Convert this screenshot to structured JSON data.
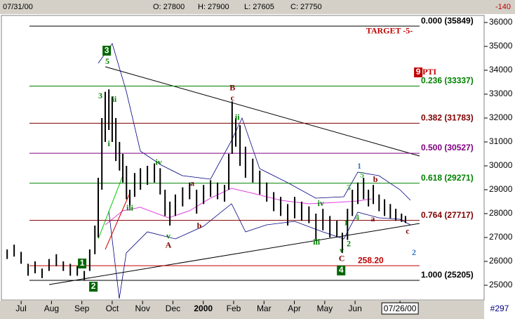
{
  "header": {
    "date": "07/31/00",
    "open": "O: 27800",
    "high": "H: 27900",
    "low": "L: 27605",
    "close": "C: 27750",
    "change": "-140"
  },
  "footer": {
    "count": "#297"
  },
  "chart_data": {
    "type": "ohlc",
    "color": "#000000",
    "xlim": [
      0.42,
      16.25
    ],
    "ylim": [
      24382,
      36294
    ],
    "xticks": [
      {
        "value": 1,
        "label": "Jul"
      },
      {
        "value": 2,
        "label": "Aug"
      },
      {
        "value": 3,
        "label": "Sep"
      },
      {
        "value": 4,
        "label": "Oct"
      },
      {
        "value": 5,
        "label": "Nov"
      },
      {
        "value": 6,
        "label": "Dec"
      },
      {
        "value": 7,
        "label": "2000"
      },
      {
        "value": 8,
        "label": "Feb"
      },
      {
        "value": 9,
        "label": "Mar"
      },
      {
        "value": 10,
        "label": "Apr"
      },
      {
        "value": 11,
        "label": "May"
      },
      {
        "value": 12,
        "label": "Jun"
      },
      {
        "value": 13.48,
        "label": "07/26/00"
      }
    ],
    "yticks": [
      25000,
      26000,
      27000,
      28000,
      29000,
      30000,
      31000,
      32000,
      33000,
      34000,
      35000,
      36000
    ],
    "x": [
      0.54,
      0.77,
      1.0,
      1.23,
      1.46,
      1.69,
      1.92,
      2.16,
      2.39,
      2.62,
      2.85,
      3.08,
      3.26,
      3.43,
      3.54,
      3.66,
      3.77,
      3.89,
      4.0,
      4.12,
      4.24,
      4.35,
      4.47,
      4.58,
      4.74,
      4.93,
      5.16,
      5.39,
      5.58,
      5.74,
      5.9,
      6.08,
      6.32,
      6.55,
      6.78,
      7.01,
      7.24,
      7.47,
      7.7,
      7.84,
      7.95,
      8.07,
      8.21,
      8.39,
      8.63,
      8.86,
      9.09,
      9.32,
      9.55,
      9.78,
      10.01,
      10.24,
      10.48,
      10.71,
      10.94,
      11.17,
      11.4,
      11.58,
      11.75,
      11.91,
      12.09,
      12.28,
      12.44,
      12.6,
      12.79,
      12.97,
      13.16,
      13.34,
      13.53,
      13.66
    ],
    "high": [
      26500,
      26700,
      26400,
      25900,
      26000,
      25700,
      26100,
      26300,
      26000,
      25900,
      25800,
      25600,
      26500,
      27500,
      29500,
      32000,
      33100,
      33200,
      32900,
      32000,
      31000,
      30500,
      30000,
      29000,
      29700,
      29900,
      30000,
      30100,
      29900,
      29000,
      28500,
      28800,
      29100,
      29300,
      29000,
      29200,
      29400,
      29300,
      29200,
      30500,
      32700,
      32000,
      31700,
      30800,
      30300,
      29800,
      29300,
      28900,
      28700,
      28400,
      28700,
      28500,
      28300,
      28000,
      28200,
      27900,
      27700,
      27200,
      28200,
      29000,
      29300,
      29500,
      29000,
      29200,
      28800,
      28600,
      28400,
      28200,
      28000,
      27900
    ],
    "low": [
      26100,
      26200,
      25900,
      25400,
      25500,
      25300,
      25600,
      25800,
      25600,
      25400,
      25400,
      25205,
      25600,
      26300,
      27000,
      29000,
      31000,
      31500,
      31000,
      30200,
      29800,
      29300,
      28600,
      28300,
      28700,
      29000,
      29200,
      29300,
      28800,
      27900,
      27500,
      27900,
      28300,
      28600,
      28000,
      28400,
      28700,
      28600,
      28500,
      29000,
      30500,
      30800,
      30000,
      29500,
      29300,
      28800,
      28500,
      28100,
      27900,
      27500,
      27800,
      27700,
      27600,
      26900,
      27300,
      27000,
      27000,
      26350,
      26900,
      27900,
      28400,
      28600,
      28300,
      28400,
      28100,
      27900,
      27800,
      27700,
      27650,
      27605
    ],
    "fib_levels": [
      {
        "label": "0.000 (35849)",
        "value": 35849,
        "color": "#000000"
      },
      {
        "label": "0.236 (33337)",
        "value": 33337,
        "color": "#008000"
      },
      {
        "label": "0.382 (31783)",
        "value": 31783,
        "color": "#800000"
      },
      {
        "label": "0.500 (30527)",
        "value": 30527,
        "color": "#800080"
      },
      {
        "label": "0.618 (29271)",
        "value": 29271,
        "color": "#008000"
      },
      {
        "label": "0.764 (27717)",
        "value": 27717,
        "color": "#800000"
      },
      {
        "label": "1.000 (25205)",
        "value": 25205,
        "color": "#000000"
      },
      {
        "label": "258.20",
        "value": 25820,
        "color": "#c00000"
      }
    ],
    "annotations": [
      {
        "text": "1",
        "x": 3.01,
        "y": 25910,
        "color": "#006600",
        "boxed": true
      },
      {
        "text": "2",
        "x": 3.38,
        "y": 24940,
        "color": "#006600",
        "boxed": true
      },
      {
        "text": "3",
        "x": 3.82,
        "y": 34820,
        "color": "#006600",
        "boxed": true
      },
      {
        "text": "4",
        "x": 11.54,
        "y": 25620,
        "color": "#006600",
        "boxed": true
      },
      {
        "text": "9",
        "x": 14.08,
        "y": 33910,
        "color": "#c00000",
        "boxed": true
      },
      {
        "text": "PTI",
        "x": 14.45,
        "y": 33910,
        "color": "#c00000",
        "boxed": false
      },
      {
        "text": "TARGET -5-",
        "x": 13.13,
        "y": 35620,
        "color": "#c00000",
        "boxed": false
      },
      {
        "text": "5",
        "x": 3.84,
        "y": 34350,
        "color": "#008000",
        "boxed": false
      },
      {
        "text": "3",
        "x": 3.61,
        "y": 32910,
        "color": "#008000",
        "boxed": false
      },
      {
        "text": "ii",
        "x": 4.07,
        "y": 32760,
        "color": "#008000",
        "boxed": false
      },
      {
        "text": "i",
        "x": 3.89,
        "y": 30910,
        "color": "#008000",
        "boxed": false
      },
      {
        "text": "iii",
        "x": 4.58,
        "y": 28210,
        "color": "#008000",
        "boxed": false
      },
      {
        "text": "iv",
        "x": 5.53,
        "y": 30120,
        "color": "#008000",
        "boxed": false
      },
      {
        "text": "v",
        "x": 5.85,
        "y": 27030,
        "color": "#008000",
        "boxed": false
      },
      {
        "text": "A",
        "x": 5.85,
        "y": 26650,
        "color": "#800000",
        "boxed": false
      },
      {
        "text": "a",
        "x": 6.64,
        "y": 29240,
        "color": "#800000",
        "boxed": false
      },
      {
        "text": "b",
        "x": 6.87,
        "y": 27470,
        "color": "#800000",
        "boxed": false
      },
      {
        "text": "B",
        "x": 7.96,
        "y": 33240,
        "color": "#800000",
        "boxed": false
      },
      {
        "text": "c",
        "x": 7.96,
        "y": 32820,
        "color": "#800000",
        "boxed": false
      },
      {
        "text": "ii",
        "x": 8.12,
        "y": 32000,
        "color": "#008000",
        "boxed": false
      },
      {
        "text": "iv",
        "x": 10.87,
        "y": 28410,
        "color": "#008000",
        "boxed": false
      },
      {
        "text": "iii",
        "x": 10.73,
        "y": 26790,
        "color": "#008000",
        "boxed": false
      },
      {
        "text": "v",
        "x": 11.56,
        "y": 26440,
        "color": "#008000",
        "boxed": false
      },
      {
        "text": "C",
        "x": 11.56,
        "y": 26090,
        "color": "#800000",
        "boxed": false
      },
      {
        "text": "1",
        "x": 11.7,
        "y": 27590,
        "color": "#008000",
        "boxed": false
      },
      {
        "text": "2",
        "x": 11.79,
        "y": 26710,
        "color": "#008000",
        "boxed": false
      },
      {
        "text": "3",
        "x": 11.79,
        "y": 29060,
        "color": "#33aa33",
        "boxed": false
      },
      {
        "text": "4",
        "x": 12.07,
        "y": 27820,
        "color": "#33aa33",
        "boxed": false
      },
      {
        "text": "5",
        "x": 12.23,
        "y": 29590,
        "color": "#33aa33",
        "boxed": false
      },
      {
        "text": "1",
        "x": 12.14,
        "y": 29970,
        "color": "#3377cc",
        "boxed": false
      },
      {
        "text": "b",
        "x": 12.67,
        "y": 29410,
        "color": "#800000",
        "boxed": false
      },
      {
        "text": "a",
        "x": 12.58,
        "y": 27760,
        "color": "#800000",
        "boxed": false
      },
      {
        "text": "c",
        "x": 13.73,
        "y": 27240,
        "color": "#800000",
        "boxed": false
      },
      {
        "text": "2",
        "x": 13.94,
        "y": 26350,
        "color": "#3377cc",
        "boxed": false
      }
    ]
  }
}
